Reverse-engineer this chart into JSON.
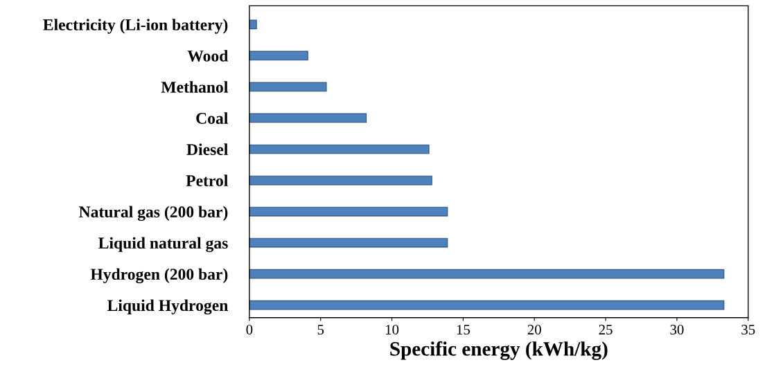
{
  "chart_data": {
    "type": "bar",
    "orientation": "horizontal",
    "xlabel": "Specific energy (kWh/kg)",
    "categories": [
      "Electricity (Li-ion battery)",
      "Wood",
      "Methanol",
      "Coal",
      "Diesel",
      "Petrol",
      "Natural gas (200 bar)",
      "Liquid natural gas",
      "Hydrogen (200 bar)",
      "Liquid Hydrogen"
    ],
    "values": [
      0.5,
      4.1,
      5.4,
      8.2,
      12.6,
      12.8,
      13.9,
      13.9,
      33.3,
      33.3
    ],
    "color": "#4f81bd",
    "xlim": [
      0,
      35
    ],
    "xticks": [
      0,
      5,
      10,
      15,
      20,
      25,
      30,
      35
    ],
    "grid": false
  }
}
